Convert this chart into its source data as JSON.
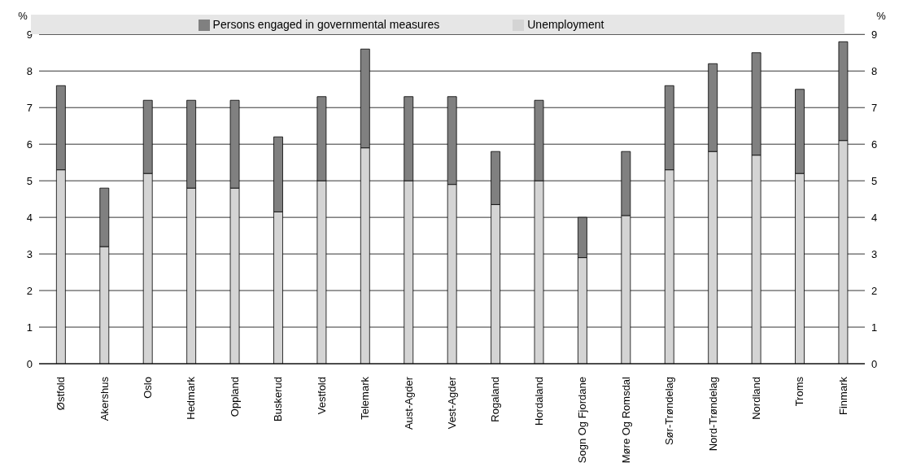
{
  "chart_data": {
    "type": "bar",
    "stacked": true,
    "ylabel": "%",
    "y2label": "%",
    "categories": [
      "Østfold",
      "Akershus",
      "Oslo",
      "Hedmark",
      "Oppland",
      "Buskerud",
      "Vestfold",
      "Telemark",
      "Aust-Agder",
      "Vest-Agder",
      "Rogaland",
      "Hordaland",
      "Sogn Og Fjordane",
      "Møre Og Romsdal",
      "Sør-Trøndelag",
      "Nord-Trøndelag",
      "Nordland",
      "Troms",
      "Finmark"
    ],
    "series": [
      {
        "name": "Unemployment",
        "color": "#d4d4d4",
        "values": [
          5.3,
          3.2,
          5.2,
          4.8,
          4.8,
          4.15,
          5.0,
          5.9,
          5.0,
          4.9,
          4.35,
          5.0,
          2.9,
          4.05,
          5.3,
          5.8,
          5.7,
          5.2,
          6.1
        ]
      },
      {
        "name": "Persons engaged in governmental measures",
        "color": "#808080",
        "values": [
          2.3,
          1.6,
          2.0,
          2.4,
          2.4,
          2.05,
          2.3,
          2.7,
          2.3,
          2.4,
          1.45,
          2.2,
          1.1,
          1.75,
          2.3,
          2.4,
          2.8,
          2.3,
          2.7
        ]
      }
    ],
    "ylim": [
      0,
      9
    ],
    "yticks": [
      0,
      1,
      2,
      3,
      4,
      5,
      6,
      7,
      8,
      9
    ],
    "y2lim": [
      0,
      9
    ],
    "y2ticks": [
      0,
      1,
      2,
      3,
      4,
      5,
      6,
      7,
      8,
      9
    ],
    "grid": "y",
    "legend": "top"
  }
}
